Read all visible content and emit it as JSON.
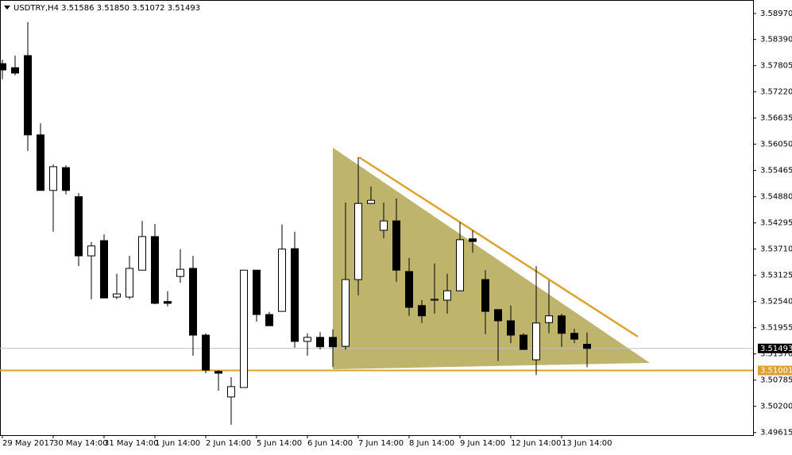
{
  "chart_data": {
    "type": "candlestick",
    "title": "USDTRY,H4  3.51586 3.51850 3.51072 3.51493",
    "categories": [
      "29 May 2017",
      null,
      null,
      null,
      "30 May 14:00",
      null,
      null,
      null,
      "31 May 14:00",
      null,
      null,
      null,
      "1 Jun 14:00",
      null,
      null,
      null,
      "2 Jun 14:00",
      null,
      null,
      null,
      "5 Jun 14:00",
      null,
      null,
      null,
      "6 Jun 14:00",
      null,
      null,
      null,
      "7 Jun 14:00",
      null,
      null,
      null,
      "8 Jun 14:00",
      null,
      null,
      null,
      "9 Jun 14:00",
      null,
      null,
      null,
      "12 Jun 14:00",
      null,
      null,
      null,
      "13 Jun 14:00",
      null,
      null
    ],
    "open": [
      3.5785,
      3.5776,
      3.5803,
      3.5626,
      3.5502,
      3.5553,
      3.5488,
      3.5356,
      3.539,
      3.5264,
      3.5264,
      3.5324,
      3.5399,
      3.5254,
      3.531,
      3.5328,
      3.5179,
      3.5098,
      3.5041,
      3.5062,
      3.5324,
      3.5225,
      3.5232,
      3.5372,
      3.5165,
      3.5174,
      3.5174,
      3.5154,
      3.5303,
      3.5473,
      3.5413,
      3.5434,
      3.5321,
      3.5245,
      3.5257,
      3.5257,
      3.5278,
      3.5394,
      3.5303,
      3.5236,
      3.5211,
      3.5179,
      3.5124,
      3.5207,
      3.5222,
      3.5183,
      3.51586
    ],
    "high": [
      3.5794,
      3.5803,
      3.5878,
      3.5652,
      3.556,
      3.5558,
      3.5496,
      3.5387,
      3.5404,
      3.5316,
      3.5356,
      3.5434,
      3.5427,
      3.5277,
      3.5371,
      3.5356,
      3.5183,
      3.5101,
      3.5085,
      3.5324,
      3.5324,
      3.5231,
      3.5426,
      3.541,
      3.5183,
      3.5186,
      3.5192,
      3.5475,
      3.5576,
      3.5511,
      3.5475,
      3.5484,
      3.5351,
      3.5257,
      3.5339,
      3.5316,
      3.5431,
      3.5413,
      3.5324,
      3.5236,
      3.5245,
      3.5183,
      3.5333,
      3.5301,
      3.5227,
      3.5193,
      3.5185
    ],
    "low": [
      3.575,
      3.5759,
      3.559,
      3.5502,
      3.541,
      3.5493,
      3.5333,
      3.5259,
      3.5262,
      3.5259,
      3.5259,
      3.5324,
      3.5248,
      3.5243,
      3.5296,
      3.5133,
      3.5094,
      3.5055,
      3.4979,
      3.5062,
      3.5209,
      3.52,
      3.5232,
      3.5151,
      3.5133,
      3.5147,
      3.5108,
      3.5147,
      3.5268,
      3.5472,
      3.5395,
      3.5298,
      3.5222,
      3.5206,
      3.5227,
      3.5227,
      3.5277,
      3.5363,
      3.5181,
      3.5121,
      3.5161,
      3.5147,
      3.509,
      3.5183,
      3.5153,
      3.5161,
      3.51072
    ],
    "close": [
      3.5771,
      3.5764,
      3.5626,
      3.5502,
      3.5555,
      3.5502,
      3.5356,
      3.5378,
      3.5262,
      3.5271,
      3.5328,
      3.5399,
      3.525,
      3.525,
      3.5326,
      3.5179,
      3.5101,
      3.5094,
      3.5064,
      3.5324,
      3.5225,
      3.52,
      3.5371,
      3.5165,
      3.5174,
      3.5153,
      3.5153,
      3.5303,
      3.5473,
      3.548,
      3.5434,
      3.5324,
      3.5241,
      3.5222,
      3.5259,
      3.5278,
      3.5392,
      3.5388,
      3.5232,
      3.5211,
      3.5179,
      3.5147,
      3.5206,
      3.5222,
      3.5183,
      3.517,
      3.51493
    ],
    "up_color": "#ffffff",
    "down_color": "#000000",
    "ylim": [
      3.49557,
      3.59271
    ],
    "yticks": [
      {
        "value": 3.5897,
        "label": "3.58970"
      },
      {
        "value": 3.5839,
        "label": "3.58390"
      },
      3.57805,
      {
        "value": 3.5722,
        "label": "3.57220"
      },
      3.56635,
      {
        "value": 3.5605,
        "label": "3.56050"
      },
      3.55465,
      {
        "value": 3.5488,
        "label": "3.54880"
      },
      3.54295,
      {
        "value": 3.5371,
        "label": "3.53710"
      },
      3.53125,
      {
        "value": 3.5254,
        "label": "3.52540"
      },
      3.51955,
      {
        "value": 3.5137,
        "label": "3.51370"
      },
      3.50785,
      {
        "value": 3.502,
        "label": "3.50200"
      },
      3.49615
    ],
    "last_price": 3.51493,
    "last_price_color": "#c0c0c0",
    "level": 3.51001,
    "level_color": "#e0a030"
  }
}
